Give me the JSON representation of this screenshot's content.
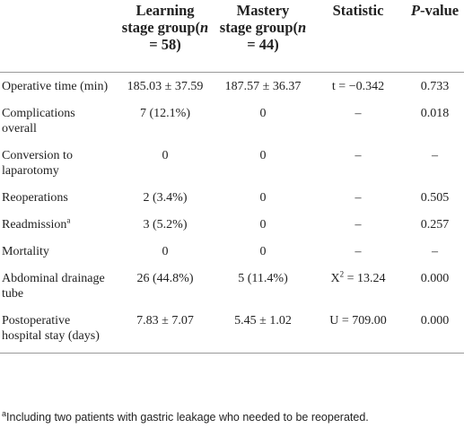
{
  "table": {
    "columns": [
      [
        {
          "text": "Learning stage group"
        },
        {
          "text": "("
        },
        {
          "text": "n",
          "style": "italic"
        },
        {
          "text": " = 58)"
        }
      ],
      [
        {
          "text": "Mastery stage group"
        },
        {
          "text": "("
        },
        {
          "text": "n",
          "style": "italic"
        },
        {
          "text": " = 44)"
        }
      ],
      [
        {
          "text": "Statistic"
        }
      ],
      [
        {
          "text": "P",
          "style": "italic"
        },
        {
          "text": "-value"
        }
      ]
    ],
    "rows": [
      [
        [
          {
            "text": "Operative time (min)"
          }
        ],
        "185.03 ± 37.59",
        "187.57 ± 36.37",
        "t = −0.342",
        "0.733"
      ],
      [
        [
          {
            "text": "Complications overall"
          }
        ],
        "7 (12.1%)",
        "0",
        "–",
        "0.018"
      ],
      [
        [
          {
            "text": "Conversion to laparotomy"
          }
        ],
        "0",
        "0",
        "–",
        "–"
      ],
      [
        [
          {
            "text": "Reoperations"
          }
        ],
        "2 (3.4%)",
        "0",
        "–",
        "0.505"
      ],
      [
        [
          {
            "text": "Readmission"
          },
          {
            "text": "a",
            "style": "sup"
          }
        ],
        "3 (5.2%)",
        "0",
        "–",
        "0.257"
      ],
      [
        [
          {
            "text": "Mortality"
          }
        ],
        "0",
        "0",
        "–",
        "–"
      ],
      [
        [
          {
            "text": "Abdominal drainage tube"
          }
        ],
        "26 (44.8%)",
        "5 (11.4%)",
        [
          {
            "text": "X"
          },
          {
            "text": "2",
            "style": "sup"
          },
          {
            "text": " = 13.24"
          }
        ],
        "0.000"
      ],
      [
        [
          {
            "text": "Postoperative hospital stay (days)"
          }
        ],
        "7.83 ± 7.07",
        "5.45 ± 1.02",
        "U = 709.00",
        "0.000"
      ]
    ],
    "footnote": [
      {
        "text": "a",
        "style": "sup"
      },
      {
        "text": "Including two patients with gastric leakage who needed to be reoperated."
      }
    ]
  }
}
